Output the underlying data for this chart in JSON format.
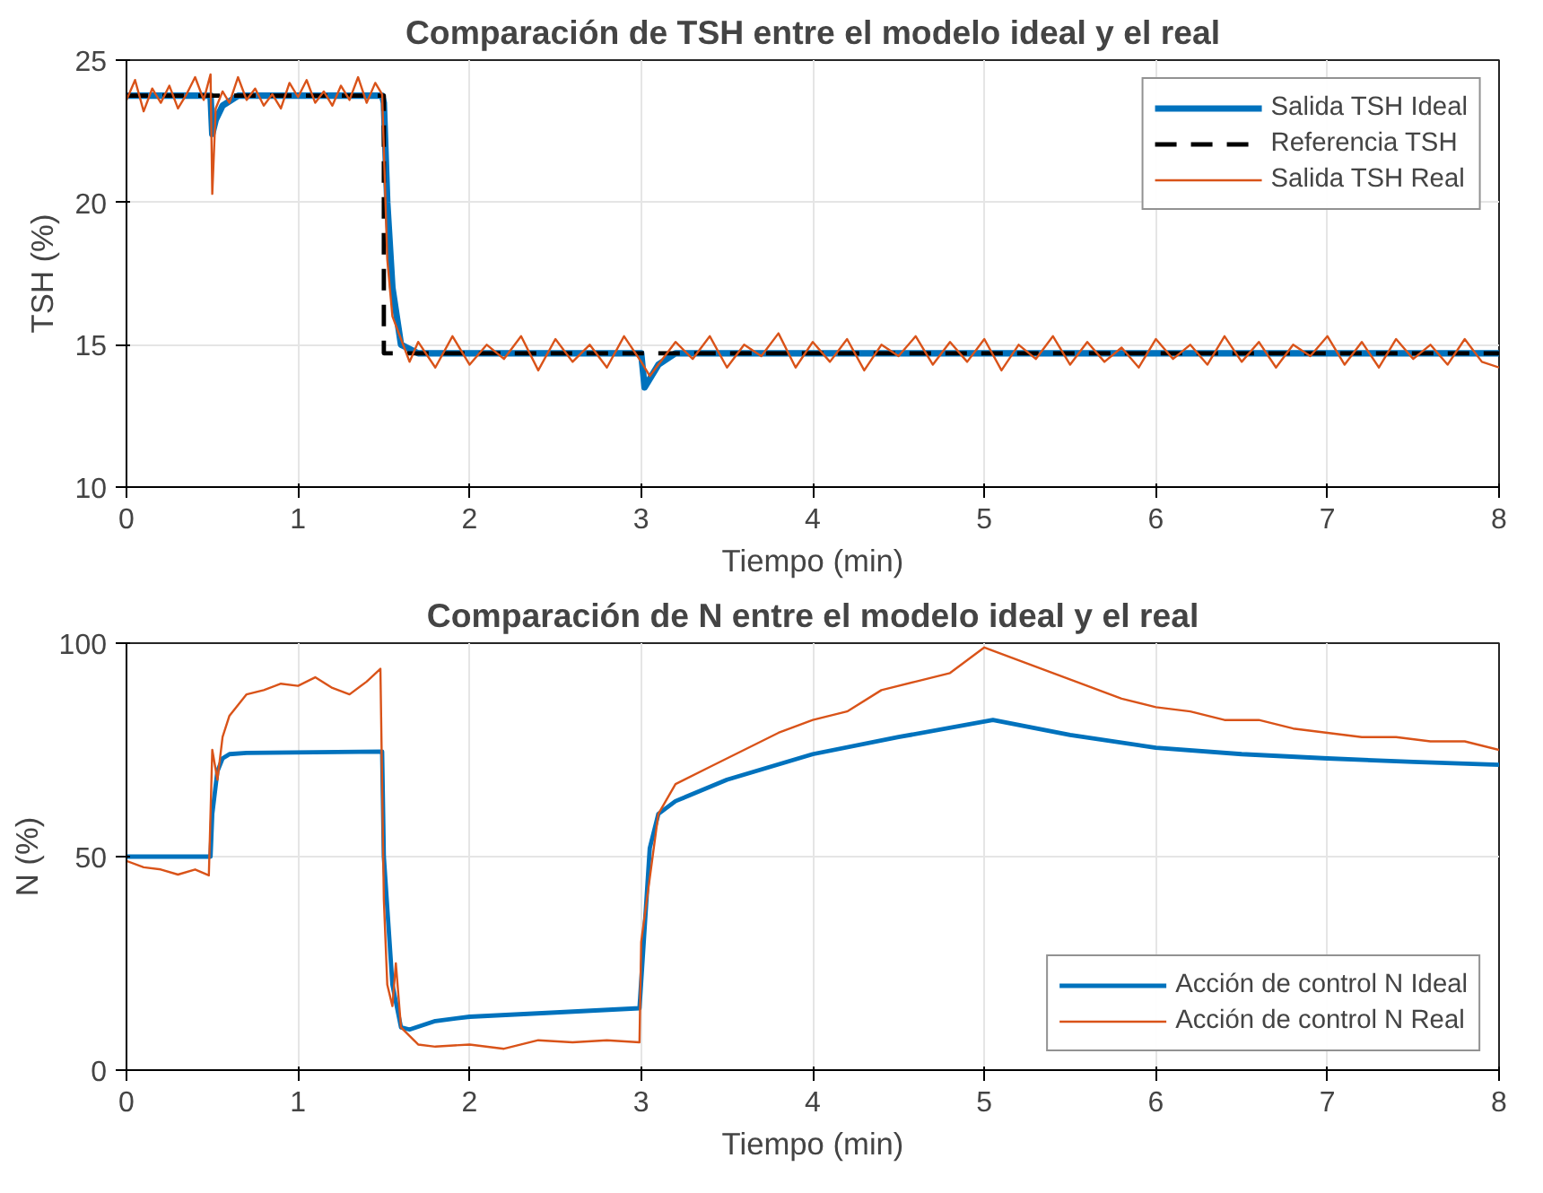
{
  "chart_data": [
    {
      "type": "line",
      "title": "Comparación de TSH entre el modelo ideal y el real",
      "xlabel": "Tiempo (min)",
      "ylabel": "TSH (%)",
      "xlim": [
        0,
        8
      ],
      "ylim": [
        10,
        25
      ],
      "xticks": [
        0,
        1,
        2,
        3,
        4,
        5,
        6,
        7,
        8
      ],
      "yticks": [
        10,
        15,
        20,
        25
      ],
      "grid": true,
      "legend": "top right",
      "series": [
        {
          "name": "Salida TSH Ideal",
          "color": "#0072bd",
          "x": [
            0,
            0.49,
            0.5,
            0.52,
            0.56,
            0.65,
            1.49,
            1.5,
            1.52,
            1.55,
            1.6,
            1.7,
            2.99,
            3.0,
            3.02,
            3.1,
            3.2,
            8
          ],
          "values": [
            23.75,
            23.75,
            22.4,
            22.9,
            23.4,
            23.75,
            23.75,
            23.5,
            20,
            17,
            15,
            14.7,
            14.7,
            14.7,
            13.5,
            14.3,
            14.7,
            14.7
          ]
        },
        {
          "name": "Referencia TSH",
          "color": "#000000",
          "line_style": "dashed",
          "x": [
            0,
            1.5,
            1.5,
            8
          ],
          "values": [
            23.75,
            23.75,
            14.7,
            14.7
          ]
        },
        {
          "name": "Salida TSH Real",
          "color": "#d95319",
          "x": [
            0,
            0.05,
            0.1,
            0.15,
            0.2,
            0.25,
            0.3,
            0.35,
            0.4,
            0.45,
            0.49,
            0.5,
            0.52,
            0.56,
            0.6,
            0.65,
            0.7,
            0.75,
            0.8,
            0.85,
            0.9,
            0.95,
            1.0,
            1.05,
            1.1,
            1.15,
            1.2,
            1.25,
            1.3,
            1.35,
            1.4,
            1.45,
            1.49,
            1.52,
            1.55,
            1.6,
            1.65,
            1.7,
            1.8,
            1.9,
            2.0,
            2.1,
            2.2,
            2.3,
            2.4,
            2.5,
            2.6,
            2.7,
            2.8,
            2.9,
            3.0,
            3.05,
            3.1,
            3.2,
            3.3,
            3.4,
            3.5,
            3.6,
            3.7,
            3.8,
            3.9,
            4.0,
            4.1,
            4.2,
            4.3,
            4.4,
            4.5,
            4.6,
            4.7,
            4.8,
            4.9,
            5.0,
            5.1,
            5.2,
            5.3,
            5.4,
            5.5,
            5.6,
            5.7,
            5.8,
            5.9,
            6.0,
            6.1,
            6.2,
            6.3,
            6.4,
            6.5,
            6.6,
            6.7,
            6.8,
            6.9,
            7.0,
            7.1,
            7.2,
            7.3,
            7.4,
            7.5,
            7.6,
            7.7,
            7.8,
            7.9,
            8.0
          ],
          "values": [
            23.6,
            24.3,
            23.2,
            24.0,
            23.5,
            24.1,
            23.3,
            23.8,
            24.4,
            23.6,
            24.5,
            20.3,
            23.3,
            23.9,
            23.5,
            24.4,
            23.6,
            24.0,
            23.4,
            23.8,
            23.3,
            24.2,
            23.7,
            24.3,
            23.5,
            23.9,
            23.4,
            24.1,
            23.6,
            24.4,
            23.5,
            24.2,
            23.8,
            18,
            16,
            15.2,
            14.4,
            15.1,
            14.2,
            15.3,
            14.3,
            15.0,
            14.5,
            15.3,
            14.1,
            15.2,
            14.4,
            15.0,
            14.2,
            15.3,
            14.4,
            13.9,
            14.3,
            15.1,
            14.5,
            15.3,
            14.2,
            15.0,
            14.6,
            15.4,
            14.2,
            15.1,
            14.4,
            15.2,
            14.1,
            15.0,
            14.6,
            15.3,
            14.3,
            15.1,
            14.4,
            15.2,
            14.1,
            15.0,
            14.5,
            15.3,
            14.3,
            15.1,
            14.4,
            14.9,
            14.2,
            15.2,
            14.5,
            15.0,
            14.3,
            15.3,
            14.4,
            15.1,
            14.2,
            15.0,
            14.6,
            15.3,
            14.3,
            15.1,
            14.2,
            15.2,
            14.5,
            15.0,
            14.3,
            15.2,
            14.4,
            14.2
          ]
        }
      ]
    },
    {
      "type": "line",
      "title": "Comparación de N entre el modelo ideal y el real",
      "xlabel": "Tiempo (min)",
      "ylabel": "N (%)",
      "xlim": [
        0,
        8
      ],
      "ylim": [
        0,
        100
      ],
      "xticks": [
        0,
        1,
        2,
        3,
        4,
        5,
        6,
        7,
        8
      ],
      "yticks": [
        0,
        50,
        100
      ],
      "grid": true,
      "legend": "bottom right",
      "series": [
        {
          "name": "Acción de control N Ideal",
          "color": "#0072bd",
          "x": [
            0,
            0.49,
            0.5,
            0.53,
            0.56,
            0.6,
            0.7,
            1.49,
            1.5,
            1.55,
            1.6,
            1.65,
            1.8,
            2.0,
            2.5,
            2.99,
            3.05,
            3.1,
            3.2,
            3.5,
            4.0,
            4.5,
            5.05,
            5.5,
            6.0,
            6.5,
            7.0,
            7.5,
            8.0
          ],
          "values": [
            50,
            50,
            60,
            70,
            73,
            74,
            74.3,
            74.6,
            50,
            20,
            10,
            9.5,
            11.5,
            12.5,
            13.5,
            14.5,
            52,
            60,
            63,
            68,
            74,
            78,
            82,
            78.5,
            75.5,
            74,
            73,
            72.2,
            71.5
          ]
        },
        {
          "name": "Acción de control N Real",
          "color": "#d95319",
          "x": [
            0,
            0.1,
            0.2,
            0.3,
            0.4,
            0.48,
            0.5,
            0.53,
            0.56,
            0.6,
            0.7,
            0.8,
            0.9,
            1.0,
            1.1,
            1.2,
            1.3,
            1.4,
            1.48,
            1.5,
            1.52,
            1.55,
            1.57,
            1.6,
            1.7,
            1.8,
            2.0,
            2.2,
            2.4,
            2.6,
            2.8,
            2.99,
            3.0,
            3.1,
            3.2,
            3.4,
            3.6,
            3.8,
            4.0,
            4.2,
            4.4,
            4.6,
            4.8,
            5.0,
            5.2,
            5.4,
            5.6,
            5.8,
            6.0,
            6.2,
            6.4,
            6.6,
            6.8,
            7.0,
            7.2,
            7.4,
            7.6,
            7.8,
            8.0
          ],
          "values": [
            49,
            47.5,
            47,
            45.8,
            47,
            45.6,
            75,
            68,
            78,
            83,
            88,
            89,
            90.5,
            90,
            92,
            89.5,
            88,
            91,
            94,
            40,
            20,
            15,
            25,
            10,
            6,
            5.5,
            6,
            5,
            7,
            6.5,
            7,
            6.5,
            30,
            60,
            67,
            71,
            75,
            79,
            82,
            84,
            89,
            91,
            93,
            99,
            96,
            93,
            90,
            87,
            85,
            84,
            82,
            82,
            80,
            79,
            78,
            78,
            77,
            77,
            75
          ]
        }
      ]
    }
  ]
}
